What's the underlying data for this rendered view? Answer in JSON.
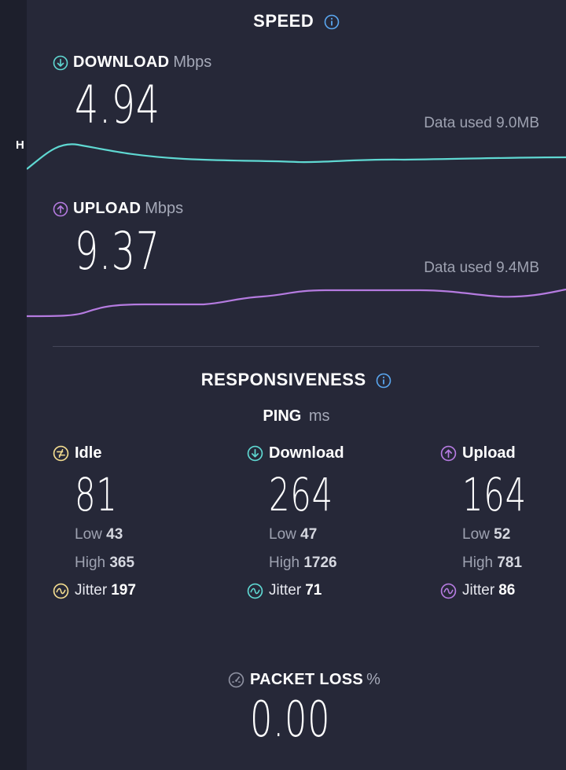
{
  "sidebar": {
    "letter": "H"
  },
  "speed": {
    "title": "SPEED",
    "download": {
      "label": "DOWNLOAD",
      "unit": "Mbps",
      "value": "4.94",
      "data_used": "Data used 9.0MB",
      "color": "#5fd8d2"
    },
    "upload": {
      "label": "UPLOAD",
      "unit": "Mbps",
      "value": "9.37",
      "data_used": "Data used 9.4MB",
      "color": "#b57be0"
    }
  },
  "responsiveness": {
    "title": "RESPONSIVENESS",
    "ping_label": "PING",
    "ping_unit": "ms",
    "idle": {
      "label": "Idle",
      "value": "81",
      "low_label": "Low",
      "low": "43",
      "high_label": "High",
      "high": "365",
      "jitter_label": "Jitter",
      "jitter": "197",
      "color": "#f3dc8f"
    },
    "download": {
      "label": "Download",
      "value": "264",
      "low_label": "Low",
      "low": "47",
      "high_label": "High",
      "high": "1726",
      "jitter_label": "Jitter",
      "jitter": "71",
      "color": "#5fd8d2"
    },
    "upload": {
      "label": "Upload",
      "value": "164",
      "low_label": "Low",
      "low": "52",
      "high_label": "High",
      "high": "781",
      "jitter_label": "Jitter",
      "jitter": "86",
      "color": "#b57be0"
    }
  },
  "packet_loss": {
    "label": "PACKET LOSS",
    "unit": "%",
    "value": "0.00"
  }
}
